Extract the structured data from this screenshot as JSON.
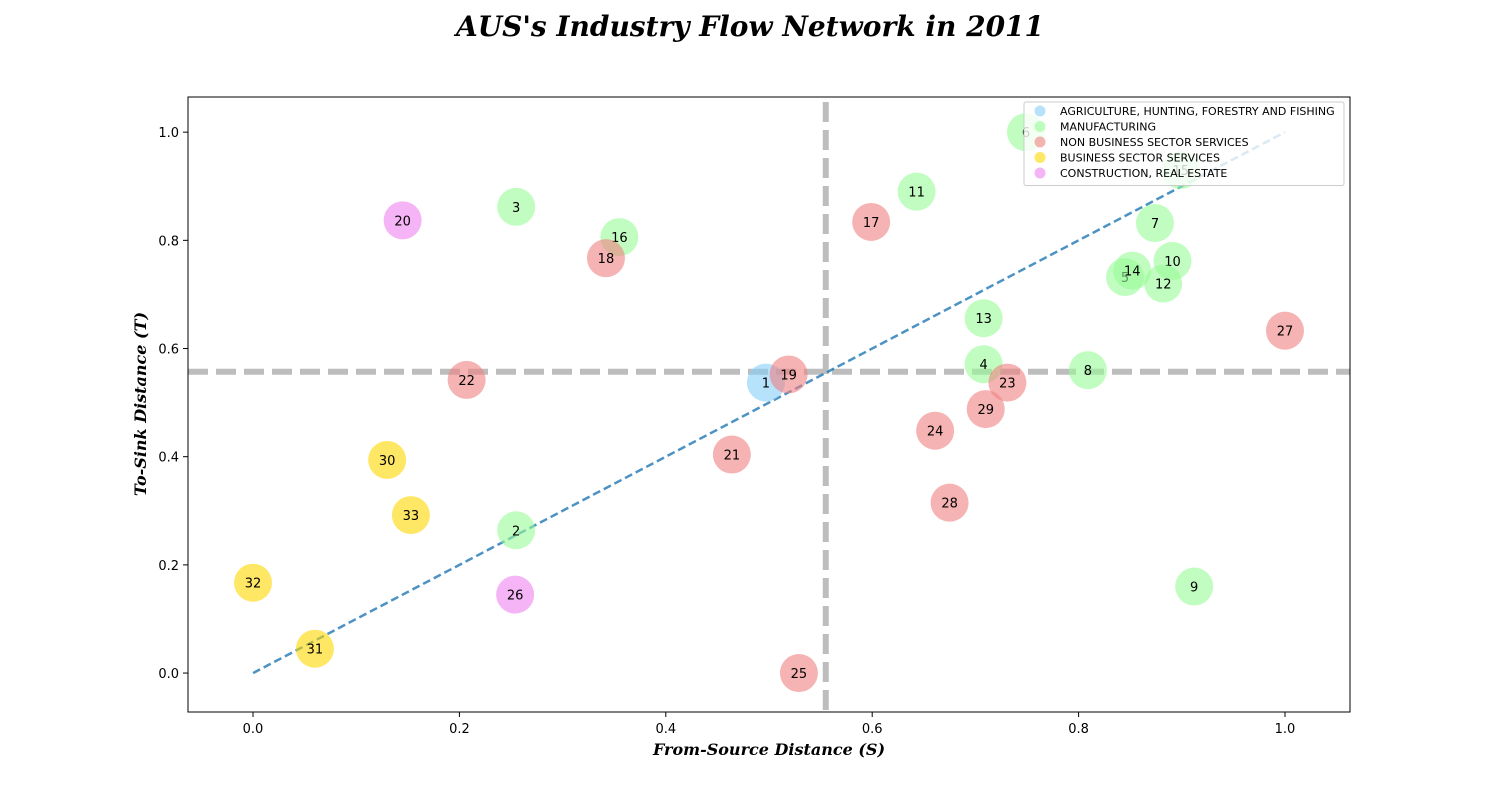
{
  "chart_data": {
    "type": "scatter",
    "title": "AUS's Industry Flow Network in 2011",
    "xlabel": "From-Source Distance (S)",
    "ylabel": "To-Sink Distance (T)",
    "xlim": [
      -0.063,
      1.063
    ],
    "ylim": [
      -0.072,
      1.065
    ],
    "xticks": [
      0.0,
      0.2,
      0.4,
      0.6,
      0.8,
      1.0
    ],
    "yticks": [
      0.0,
      0.2,
      0.4,
      0.6,
      0.8,
      1.0
    ],
    "tick_labels_x": [
      "0.0",
      "0.2",
      "0.4",
      "0.6",
      "0.8",
      "1.0"
    ],
    "tick_labels_y": [
      "0.0",
      "0.2",
      "0.4",
      "0.6",
      "0.8",
      "1.0"
    ],
    "grid": false,
    "legend_position": "top-right",
    "reference_lines": {
      "vertical_x": 0.555,
      "horizontal_y": 0.557,
      "diagonal": [
        [
          0,
          0
        ],
        [
          1,
          1
        ]
      ]
    },
    "series": [
      {
        "name": "AGRICULTURE, HUNTING, FORESTRY AND FISHING",
        "color": "#87CEFA",
        "points": [
          {
            "label": "1",
            "x": 0.497,
            "y": 0.537
          }
        ]
      },
      {
        "name": "MANUFACTURING",
        "color": "#98FB98",
        "points": [
          {
            "label": "2",
            "x": 0.255,
            "y": 0.264
          },
          {
            "label": "3",
            "x": 0.255,
            "y": 0.862
          },
          {
            "label": "4",
            "x": 0.708,
            "y": 0.571
          },
          {
            "label": "5",
            "x": 0.845,
            "y": 0.732
          },
          {
            "label": "6",
            "x": 0.749,
            "y": 1.0
          },
          {
            "label": "7",
            "x": 0.874,
            "y": 0.832
          },
          {
            "label": "8",
            "x": 0.809,
            "y": 0.56
          },
          {
            "label": "9",
            "x": 0.912,
            "y": 0.16
          },
          {
            "label": "10",
            "x": 0.891,
            "y": 0.762
          },
          {
            "label": "11",
            "x": 0.643,
            "y": 0.89
          },
          {
            "label": "12",
            "x": 0.882,
            "y": 0.72
          },
          {
            "label": "13",
            "x": 0.708,
            "y": 0.656
          },
          {
            "label": "14",
            "x": 0.852,
            "y": 0.744
          },
          {
            "label": "15",
            "x": 0.899,
            "y": 0.93
          },
          {
            "label": "16",
            "x": 0.355,
            "y": 0.806
          }
        ]
      },
      {
        "name": "NON BUSINESS SECTOR SERVICES",
        "color": "#F08080",
        "points": [
          {
            "label": "17",
            "x": 0.599,
            "y": 0.834
          },
          {
            "label": "18",
            "x": 0.342,
            "y": 0.767
          },
          {
            "label": "19",
            "x": 0.519,
            "y": 0.552
          },
          {
            "label": "21",
            "x": 0.464,
            "y": 0.404
          },
          {
            "label": "22",
            "x": 0.207,
            "y": 0.542
          },
          {
            "label": "23",
            "x": 0.731,
            "y": 0.537
          },
          {
            "label": "24",
            "x": 0.661,
            "y": 0.448
          },
          {
            "label": "25",
            "x": 0.529,
            "y": 0.0
          },
          {
            "label": "27",
            "x": 1.0,
            "y": 0.633
          },
          {
            "label": "28",
            "x": 0.675,
            "y": 0.315
          },
          {
            "label": "29",
            "x": 0.71,
            "y": 0.488
          }
        ]
      },
      {
        "name": "BUSINESS SECTOR SERVICES",
        "color": "#FFD700",
        "points": [
          {
            "label": "30",
            "x": 0.13,
            "y": 0.394
          },
          {
            "label": "31",
            "x": 0.06,
            "y": 0.045
          },
          {
            "label": "32",
            "x": 0.0,
            "y": 0.167
          },
          {
            "label": "33",
            "x": 0.153,
            "y": 0.292
          }
        ]
      },
      {
        "name": "CONSTRUCTION, REAL ESTATE",
        "color": "#EE82EE",
        "points": [
          {
            "label": "20",
            "x": 0.145,
            "y": 0.837
          },
          {
            "label": "26",
            "x": 0.254,
            "y": 0.145
          }
        ]
      }
    ]
  }
}
